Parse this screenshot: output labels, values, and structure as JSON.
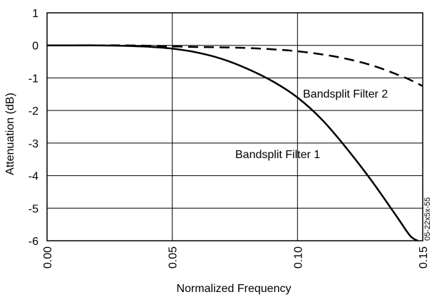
{
  "chart_data": {
    "type": "line",
    "title": "",
    "xlabel": "Normalized Frequency",
    "ylabel": "Attenuation (dB)",
    "xlim": [
      0.0,
      0.15
    ],
    "ylim": [
      -6,
      1
    ],
    "x_ticks": [
      "0.00",
      "0.05",
      "0.10",
      "0.15"
    ],
    "y_ticks": [
      "1",
      "0",
      "-1",
      "-2",
      "-3",
      "-4",
      "-5",
      "-6"
    ],
    "grid": true,
    "series": [
      {
        "name": "Bandsplit Filter 1",
        "style": "solid",
        "x": [
          0,
          0.01,
          0.02,
          0.03,
          0.04,
          0.05,
          0.06,
          0.07,
          0.08,
          0.09,
          0.1,
          0.11,
          0.12,
          0.13,
          0.14,
          0.145,
          0.148
        ],
        "y": [
          0,
          0,
          0,
          -0.01,
          -0.04,
          -0.1,
          -0.22,
          -0.42,
          -0.72,
          -1.1,
          -1.6,
          -2.3,
          -3.2,
          -4.2,
          -5.3,
          -5.85,
          -6.0
        ]
      },
      {
        "name": "Bandsplit Filter 2",
        "style": "dashed",
        "x": [
          0,
          0.01,
          0.02,
          0.03,
          0.04,
          0.05,
          0.06,
          0.07,
          0.08,
          0.09,
          0.1,
          0.11,
          0.12,
          0.13,
          0.14,
          0.145,
          0.15
        ],
        "y": [
          0,
          0,
          0,
          0,
          -0.01,
          -0.03,
          -0.05,
          -0.06,
          -0.08,
          -0.12,
          -0.18,
          -0.28,
          -0.42,
          -0.62,
          -0.9,
          -1.06,
          -1.25
        ]
      }
    ]
  },
  "annotations": {
    "filter2": "Bandsplit Filter 2",
    "filter1": "Bandsplit Filter 1"
  },
  "figure_id": "05-22x5x-55"
}
